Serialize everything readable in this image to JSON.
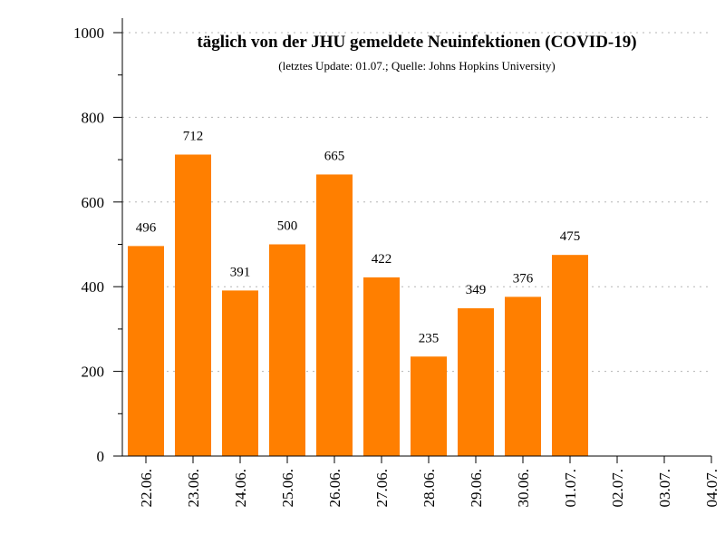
{
  "chart_data": {
    "type": "bar",
    "title": "täglich von der JHU gemeldete Neuinfektionen (COVID-19)",
    "subtitle": "(letztes Update: 01.07.; Quelle: Johns Hopkins University)",
    "categories": [
      "22.06.",
      "23.06.",
      "24.06.",
      "25.06.",
      "26.06.",
      "27.06.",
      "28.06.",
      "29.06.",
      "30.06.",
      "01.07.",
      "02.07.",
      "03.07.",
      "04.07."
    ],
    "values": [
      496,
      712,
      391,
      500,
      665,
      422,
      235,
      349,
      376,
      475,
      null,
      null,
      null
    ],
    "xlabel": "",
    "ylabel": "",
    "ylim": [
      0,
      1000
    ],
    "yticks": [
      0,
      200,
      400,
      600,
      800,
      1000
    ],
    "grid": "horizontal dotted",
    "legend": "none",
    "bar_color": "#ff7f00"
  }
}
